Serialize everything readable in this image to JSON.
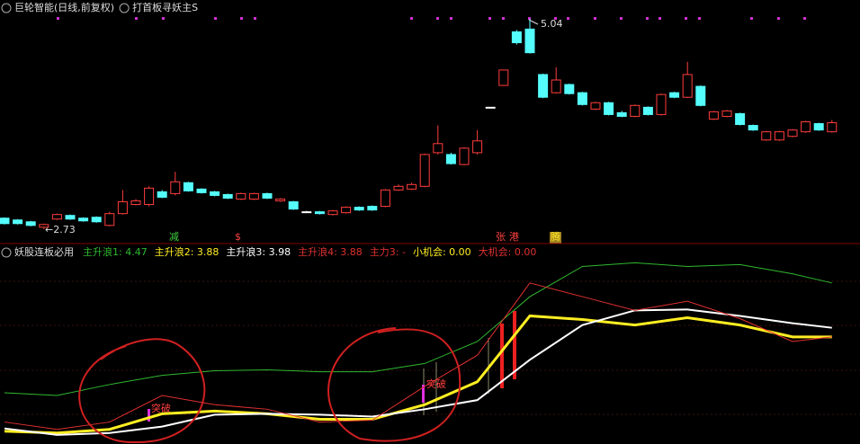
{
  "chart_data": [
    {
      "type": "candlestick",
      "title": "巨轮智能(日线,前复权)",
      "subtitle": "打首板寻妖主S",
      "up_color": "#ff3c3c",
      "down_color": "#54fcfc",
      "flat_color": "#ffffff",
      "open": [
        2.85,
        2.83,
        2.81,
        2.75,
        2.84,
        2.88,
        2.85,
        2.86,
        2.77,
        2.9,
        3.0,
        3.0,
        3.14,
        3.12,
        3.24,
        3.17,
        3.14,
        3.11,
        3.06,
        3.06,
        3.12,
        3.04,
        3.03,
        2.92,
        2.92,
        2.89,
        2.91,
        2.97,
        2.98,
        2.98,
        3.16,
        3.17,
        3.2,
        3.57,
        3.55,
        3.44,
        3.57,
        4.07,
        4.31,
        4.9,
        4.93,
        4.43,
        4.23,
        4.32,
        4.23,
        4.05,
        4.12,
        4.01,
        3.97,
        4.07,
        3.99,
        4.23,
        4.18,
        4.3,
        3.94,
        3.97,
        4.0,
        3.87,
        3.71,
        3.71,
        3.75,
        3.8,
        3.89,
        3.8
      ],
      "close": [
        2.79,
        2.79,
        2.77,
        2.78,
        2.89,
        2.84,
        2.82,
        2.81,
        2.9,
        3.03,
        3.04,
        3.18,
        3.08,
        3.25,
        3.15,
        3.13,
        3.1,
        3.07,
        3.12,
        3.12,
        3.07,
        3.06,
        2.95,
        2.92,
        2.9,
        2.93,
        2.97,
        2.94,
        2.94,
        3.16,
        3.2,
        3.22,
        3.55,
        3.67,
        3.45,
        3.62,
        3.7,
        4.07,
        4.48,
        4.78,
        4.67,
        4.18,
        4.37,
        4.22,
        4.1,
        4.12,
        3.99,
        3.97,
        4.09,
        3.99,
        4.21,
        4.18,
        4.43,
        4.09,
        4.02,
        4.03,
        3.88,
        3.82,
        3.8,
        3.8,
        3.82,
        3.91,
        3.82,
        3.9
      ],
      "high": [
        2.86,
        2.84,
        2.82,
        2.79,
        2.9,
        2.89,
        2.86,
        2.87,
        2.92,
        3.16,
        3.06,
        3.2,
        3.16,
        3.36,
        3.25,
        3.18,
        3.15,
        3.12,
        3.13,
        3.13,
        3.13,
        3.07,
        3.04,
        2.93,
        2.93,
        2.94,
        2.98,
        2.98,
        2.99,
        3.17,
        3.22,
        3.24,
        3.56,
        3.87,
        3.57,
        3.63,
        3.82,
        4.07,
        4.48,
        4.92,
        5.04,
        4.44,
        4.51,
        4.33,
        4.24,
        4.13,
        4.13,
        4.03,
        4.1,
        4.08,
        4.22,
        4.24,
        4.57,
        4.31,
        4.03,
        4.04,
        4.01,
        3.88,
        3.81,
        3.81,
        3.83,
        3.92,
        3.9,
        3.93
      ],
      "low": [
        2.78,
        2.78,
        2.76,
        2.73,
        2.83,
        2.83,
        2.81,
        2.8,
        2.76,
        2.89,
        2.99,
        2.98,
        3.07,
        3.1,
        3.14,
        3.12,
        3.09,
        3.06,
        3.05,
        3.05,
        3.06,
        3.03,
        2.94,
        2.91,
        2.89,
        2.88,
        2.9,
        2.93,
        2.93,
        2.97,
        3.15,
        3.16,
        3.19,
        3.55,
        3.44,
        3.43,
        3.55,
        4.07,
        4.31,
        4.76,
        4.66,
        4.17,
        4.22,
        4.21,
        4.09,
        4.04,
        3.98,
        3.96,
        3.96,
        3.98,
        3.98,
        4.17,
        4.17,
        4.08,
        3.93,
        3.96,
        3.87,
        3.81,
        3.7,
        3.7,
        3.74,
        3.79,
        3.81,
        3.79
      ],
      "ylim": [
        2.6,
        5.25
      ],
      "annotations": {
        "low": "←2.73",
        "high": "5.04",
        "jian": "减",
        "dollar": "$",
        "zhang": "张",
        "gang": "港",
        "teng": "腾"
      }
    },
    {
      "type": "line",
      "title": "妖股连板必用",
      "x": [
        0,
        4,
        8,
        12,
        16,
        20,
        24,
        28,
        32,
        36,
        40,
        44,
        48,
        52,
        56,
        60,
        63
      ],
      "series": [
        {
          "name": "主升浪1",
          "color": "#2fb82f",
          "width": 1,
          "values": [
            3.27,
            3.24,
            3.36,
            3.46,
            3.51,
            3.52,
            3.5,
            3.5,
            3.59,
            3.83,
            4.32,
            4.65,
            4.69,
            4.65,
            4.67,
            4.57,
            4.47
          ]
        },
        {
          "name": "主升浪2",
          "color": "#ffee22",
          "width": 3,
          "values": [
            2.85,
            2.83,
            2.87,
            3.04,
            3.07,
            3.04,
            2.98,
            2.98,
            3.14,
            3.39,
            4.11,
            4.07,
            4.01,
            4.09,
            4.01,
            3.88,
            3.88
          ]
        },
        {
          "name": "主升浪3",
          "color": "#ffffff",
          "width": 2,
          "values": [
            2.88,
            2.81,
            2.83,
            2.9,
            3.03,
            3.04,
            3.03,
            3.01,
            3.09,
            3.19,
            3.63,
            4.01,
            4.17,
            4.18,
            4.11,
            4.03,
            3.98
          ]
        },
        {
          "name": "主升浪4",
          "color": "#e03030",
          "width": 1,
          "values": [
            2.95,
            2.87,
            2.95,
            3.24,
            3.14,
            3.09,
            2.95,
            2.97,
            3.34,
            3.68,
            4.47,
            4.32,
            4.17,
            4.27,
            4.08,
            3.83,
            3.88
          ]
        }
      ],
      "ylim": [
        2.71,
        4.91
      ],
      "legend": [
        {
          "text": "主升浪1: 4.47",
          "color": "#2fb82f"
        },
        {
          "text": "主升浪2: 3.88",
          "color": "#ffee22"
        },
        {
          "text": "主升浪3: 3.98",
          "color": "#ffffff"
        },
        {
          "text": "主升浪4: 3.88",
          "color": "#e03030"
        },
        {
          "text": "主力3: -",
          "color": "#e03030"
        },
        {
          "text": "小机会: 0.00",
          "color": "#ffee22"
        },
        {
          "text": "大机会: 0.00",
          "color": "#e03030"
        }
      ],
      "annotations": [
        "突破",
        "突破"
      ]
    }
  ]
}
